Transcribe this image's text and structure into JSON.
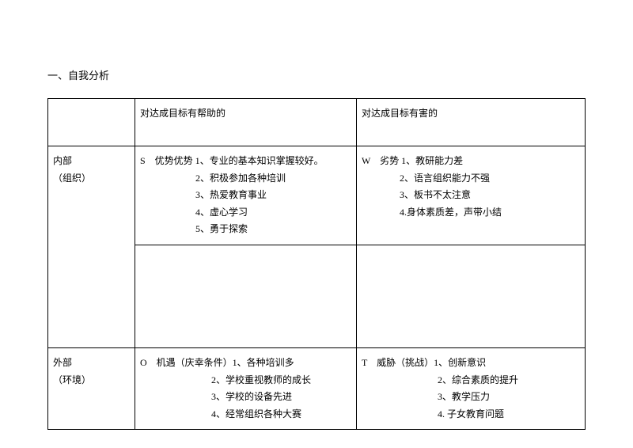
{
  "title": "一、自我分析",
  "headers": {
    "helpful": "对达成目标有帮助的",
    "harmful": "对达成目标有害的"
  },
  "rows": {
    "internal": {
      "label_line1": "内部",
      "label_line2": "（组织）",
      "strengths_prefix": "S　优势优势 1、专业的基本知识掌握较好。",
      "s2": "2、积极参加各种培训",
      "s3": "3、热爱教育事业",
      "s4": "4、虚心学习",
      "s5": "5、勇于探索",
      "weaknesses_prefix": "W　劣势 1、教研能力差",
      "w2": "2、语言组织能力不强",
      "w3": "3、板书不太注意",
      "w4": "4.身体素质差，声带小结"
    },
    "external": {
      "label_line1": "外部",
      "label_line2": "（环境）",
      "opportunities_prefix": "O　机遇（庆幸条件）1、各种培训多",
      "o2": "2、学校重视教师的成长",
      "o3": "3、学校的设备先进",
      "o4": "4、经常组织各种大赛",
      "threats_prefix": "T　威胁（挑战）1、创新意识",
      "t2": "2、综合素质的提升",
      "t3": "3、教学压力",
      "t4": "4. 子女教育问题"
    }
  }
}
